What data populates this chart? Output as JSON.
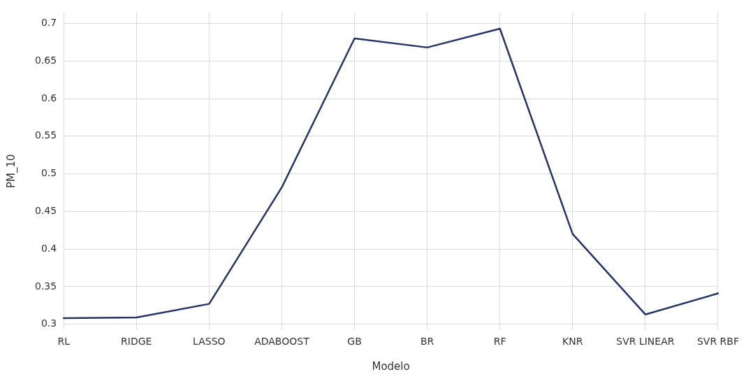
{
  "chart_data": {
    "type": "line",
    "xlabel": "Modelo",
    "ylabel": "PM_10",
    "categories": [
      "RL",
      "RIDGE",
      "LASSO",
      "ADABOOST",
      "GB",
      "BR",
      "RF",
      "KNR",
      "SVR LINEAR",
      "SVR RBF"
    ],
    "series": [
      {
        "color": "#253365",
        "values": [
          0.308,
          0.309,
          0.327,
          0.482,
          0.68,
          0.668,
          0.693,
          0.42,
          0.313,
          0.341
        ]
      }
    ],
    "ylim": [
      0.293,
      0.714
    ],
    "yticks": [
      0.3,
      0.35,
      0.4,
      0.45,
      0.5,
      0.55,
      0.6,
      0.65,
      0.7
    ],
    "grid": true,
    "legend": false,
    "marker": "none",
    "line_style": "solid"
  }
}
